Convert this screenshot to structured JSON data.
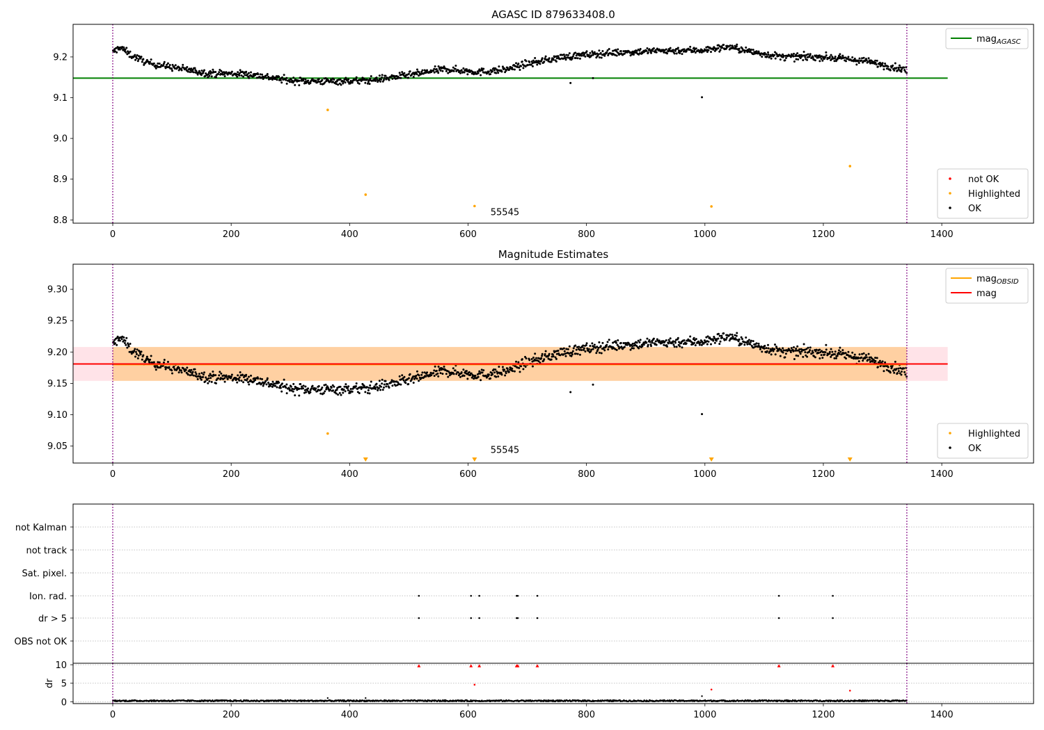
{
  "chart_data": [
    {
      "type": "scatter",
      "title": "AGASC ID 879633408.0",
      "xlabel": "",
      "ylabel": "",
      "xlim": [
        -67,
        1555
      ],
      "ylim": [
        8.792,
        9.28
      ],
      "x_ticks": [
        0,
        200,
        400,
        600,
        800,
        1000,
        1200,
        1400
      ],
      "x_tick_labels": [
        "0",
        "200",
        "400",
        "600",
        "800",
        "1000",
        "1200",
        "1400"
      ],
      "y_ticks": [
        8.8,
        8.9,
        9.0,
        9.1,
        9.2
      ],
      "y_tick_labels": [
        "8.8",
        "8.9",
        "9.0",
        "9.1",
        "9.2"
      ],
      "vlines": [
        0,
        1341
      ],
      "series": [
        {
          "name": "not OK",
          "color": "#ff0000",
          "points": []
        },
        {
          "name": "Highlighted",
          "color": "#ffa500",
          "points": [
            [
              363,
              9.07
            ],
            [
              427,
              8.862
            ],
            [
              611,
              8.834
            ],
            [
              1011,
              8.833
            ],
            [
              1245,
              8.932
            ]
          ]
        },
        {
          "name": "OK",
          "color": "#000000",
          "description": "dense time series, generated from segments",
          "segments": [
            [
              0,
              9.21
            ],
            [
              12,
              9.225
            ],
            [
              30,
              9.205
            ],
            [
              60,
              9.185
            ],
            [
              100,
              9.175
            ],
            [
              160,
              9.16
            ],
            [
              230,
              9.158
            ],
            [
              300,
              9.142
            ],
            [
              360,
              9.14
            ],
            [
              430,
              9.142
            ],
            [
              500,
              9.155
            ],
            [
              560,
              9.17
            ],
            [
              620,
              9.163
            ],
            [
              660,
              9.168
            ],
            [
              700,
              9.183
            ],
            [
              760,
              9.2
            ],
            [
              840,
              9.21
            ],
            [
              920,
              9.215
            ],
            [
              1000,
              9.217
            ],
            [
              1040,
              9.225
            ],
            [
              1080,
              9.212
            ],
            [
              1130,
              9.2
            ],
            [
              1200,
              9.2
            ],
            [
              1270,
              9.19
            ],
            [
              1341,
              9.168
            ]
          ],
          "count": 1341,
          "outliers": [
            [
              995,
              9.101
            ],
            [
              773,
              9.136
            ],
            [
              811,
              9.148
            ]
          ]
        }
      ],
      "lines": [
        {
          "name": "mag_AGASC",
          "color": "#008000",
          "y": 9.148,
          "x": [
            -67,
            1410
          ]
        }
      ],
      "legends": [
        {
          "position": "top-right",
          "entries": [
            {
              "label": "mag",
              "subscript": "AGASC",
              "kind": "line",
              "color": "#008000"
            }
          ]
        },
        {
          "position": "bottom-right",
          "entries": [
            {
              "label": "not OK",
              "kind": "dot",
              "color": "#ff0000"
            },
            {
              "label": "Highlighted",
              "kind": "dot",
              "color": "#ffa500"
            },
            {
              "label": "OK",
              "kind": "dot",
              "color": "#000000"
            }
          ]
        }
      ],
      "annotations": [
        {
          "text": "55545",
          "x": 645,
          "y": 8.808
        }
      ]
    },
    {
      "type": "scatter",
      "title": "Magnitude Estimates",
      "xlabel": "",
      "ylabel": "",
      "xlim": [
        -67,
        1555
      ],
      "ylim": [
        9.023,
        9.34
      ],
      "x_ticks": [
        0,
        200,
        400,
        600,
        800,
        1000,
        1200,
        1400
      ],
      "x_tick_labels": [
        "0",
        "200",
        "400",
        "600",
        "800",
        "1000",
        "1200",
        "1400"
      ],
      "y_ticks": [
        9.05,
        9.1,
        9.15,
        9.2,
        9.25,
        9.3
      ],
      "y_tick_labels": [
        "9.05",
        "9.10",
        "9.15",
        "9.20",
        "9.25",
        "9.30"
      ],
      "vlines": [
        0,
        1341
      ],
      "bands": [
        {
          "color": "#ffc0cb",
          "opacity": 0.45,
          "x": [
            -67,
            1410
          ],
          "y": [
            9.154,
            9.208
          ]
        },
        {
          "color": "#ffa500",
          "opacity": 0.3,
          "x": [
            0,
            1341
          ],
          "y": [
            9.154,
            9.208
          ]
        }
      ],
      "series": [
        {
          "name": "Highlighted",
          "color": "#ffa500",
          "points": [
            [
              363,
              9.07
            ]
          ],
          "clipped_below": [
            427,
            611,
            1011,
            1245
          ]
        },
        {
          "name": "OK",
          "color": "#000000",
          "description": "same time series as upper panel",
          "count": 1341,
          "outliers": [
            [
              995,
              9.101
            ],
            [
              773,
              9.136
            ],
            [
              811,
              9.148
            ]
          ]
        }
      ],
      "lines": [
        {
          "name": "mag_OBSID",
          "color": "#ffa500",
          "y": 9.18,
          "x": [
            0,
            1341
          ]
        },
        {
          "name": "mag",
          "color": "#ff0000",
          "y": 9.181,
          "x": [
            -67,
            1410
          ]
        }
      ],
      "legends": [
        {
          "position": "top-right",
          "entries": [
            {
              "label": "mag",
              "subscript": "OBSID",
              "kind": "line",
              "color": "#ffa500"
            },
            {
              "label": "mag",
              "subscript": "",
              "kind": "line",
              "color": "#ff0000"
            }
          ]
        },
        {
          "position": "bottom-right",
          "entries": [
            {
              "label": "Highlighted",
              "kind": "dot",
              "color": "#ffa500"
            },
            {
              "label": "OK",
              "kind": "dot",
              "color": "#000000"
            }
          ]
        }
      ],
      "annotations": [
        {
          "text": "55545",
          "x": 645,
          "y": 9.03
        }
      ]
    },
    {
      "type": "scatter",
      "title": "",
      "xlabel": "",
      "ylabel": "",
      "xlim": [
        -67,
        1555
      ],
      "y_categories": [
        "not Kalman",
        "not track",
        "Sat. pixel.",
        "Ion. rad.",
        "dr > 5",
        "OBS not OK"
      ],
      "series": [
        {
          "name": "Ion. rad.",
          "color": "#000000",
          "x": [
            517,
            605,
            619,
            682,
            684,
            717,
            1125,
            1216
          ]
        },
        {
          "name": "dr > 5",
          "color": "#000000",
          "x": [
            517,
            605,
            619,
            682,
            684,
            717,
            1125,
            1216
          ]
        }
      ],
      "vlines": [
        0,
        1341
      ]
    },
    {
      "type": "scatter",
      "title": "",
      "xlabel": "",
      "ylabel": "dr",
      "xlim": [
        -67,
        1555
      ],
      "ylim": [
        -0.5,
        10.4
      ],
      "x_ticks": [
        0,
        200,
        400,
        600,
        800,
        1000,
        1200,
        1400
      ],
      "x_tick_labels": [
        "0",
        "200",
        "400",
        "600",
        "800",
        "1000",
        "1200",
        "1400"
      ],
      "y_ticks": [
        0,
        5,
        10
      ],
      "y_tick_labels": [
        "0",
        "5",
        "10"
      ],
      "vlines": [
        0,
        1341
      ],
      "series": [
        {
          "name": "dr",
          "color": "#000000",
          "description": "small dr values near 0 for all observations",
          "count": 1341,
          "level": 0.25,
          "bumps": [
            [
              363,
              1.0
            ],
            [
              427,
              1.0
            ],
            [
              995,
              1.5
            ]
          ]
        },
        {
          "name": "dr capped",
          "color": "#ff0000",
          "marker": "triangle-up",
          "points": [
            [
              517,
              9.7
            ],
            [
              605,
              9.7
            ],
            [
              619,
              9.7
            ],
            [
              682,
              9.7
            ],
            [
              684,
              9.7
            ],
            [
              717,
              9.7
            ],
            [
              1125,
              9.7
            ],
            [
              1216,
              9.7
            ]
          ]
        },
        {
          "name": "dr highlighted",
          "color": "#ff0000",
          "points": [
            [
              611,
              4.6
            ],
            [
              1011,
              3.3
            ],
            [
              1245,
              3.0
            ]
          ]
        }
      ]
    }
  ]
}
